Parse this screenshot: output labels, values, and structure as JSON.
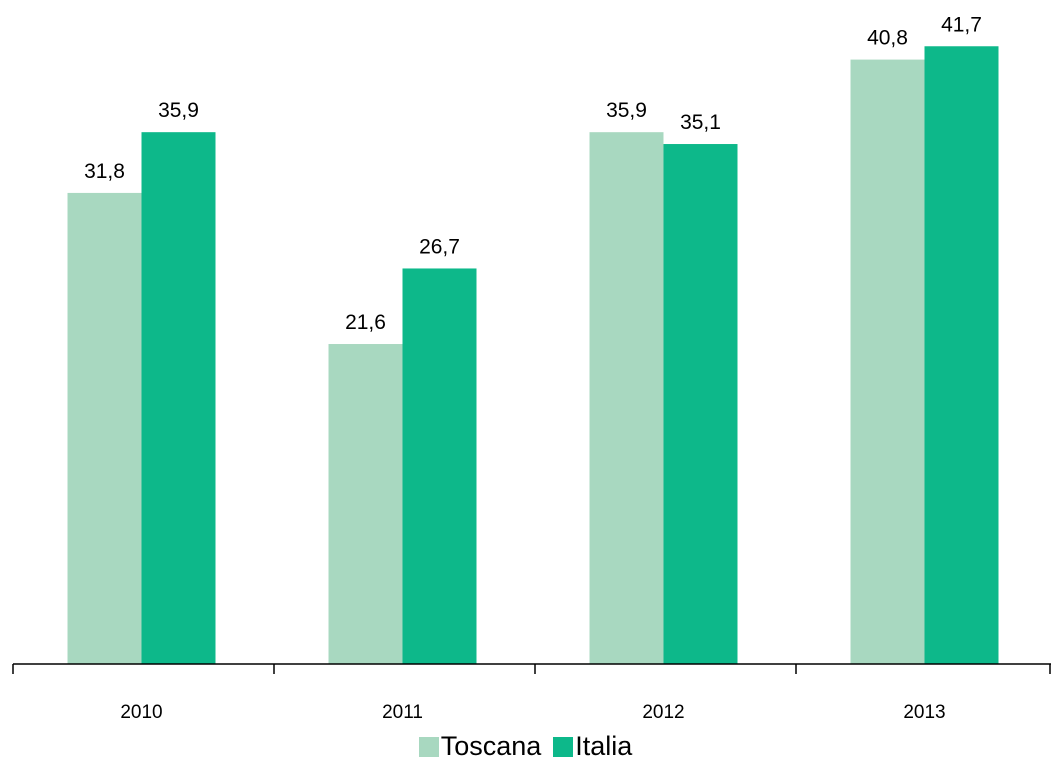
{
  "chart_data": {
    "type": "bar",
    "categories": [
      "2010",
      "2011",
      "2012",
      "2013"
    ],
    "series": [
      {
        "name": "Toscana",
        "values": [
          31.8,
          21.6,
          35.9,
          40.8
        ],
        "labels": [
          "31,8",
          "21,6",
          "35,9",
          "40,8"
        ],
        "color": "#a8d8c0"
      },
      {
        "name": "Italia",
        "values": [
          35.9,
          26.7,
          35.1,
          41.7
        ],
        "labels": [
          "35,9",
          "26,7",
          "35,1",
          "41,7"
        ],
        "color": "#0db88a"
      }
    ],
    "title": "",
    "xlabel": "",
    "ylabel": "",
    "ylim": [
      0,
      42
    ],
    "grid": false,
    "legend_position": "bottom"
  }
}
